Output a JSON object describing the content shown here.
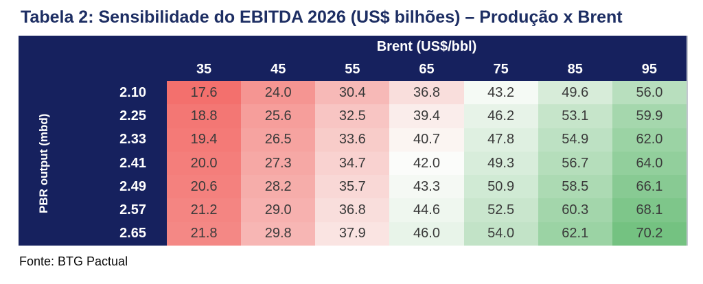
{
  "page": {
    "title": "Tabela 2: Sensibilidade do EBITDA 2026 (US$ bilhões) – Produção x Brent",
    "source_note": "Fonte: BTG Pactual"
  },
  "chart_data": {
    "type": "heatmap",
    "title": "Tabela 2: Sensibilidade do EBITDA 2026 (US$ bilhões) – Produção x Brent",
    "column_group_label": "Brent (US$/bbl)",
    "row_group_label": "PBR output (mbd)",
    "columns": [
      "35",
      "45",
      "55",
      "65",
      "75",
      "85",
      "95"
    ],
    "rows": [
      "2.10",
      "2.25",
      "2.33",
      "2.41",
      "2.49",
      "2.57",
      "2.65"
    ],
    "values": [
      [
        "17.6",
        "24.0",
        "30.4",
        "36.8",
        "43.2",
        "49.6",
        "56.0"
      ],
      [
        "18.8",
        "25.6",
        "32.5",
        "39.4",
        "46.2",
        "53.1",
        "59.9"
      ],
      [
        "19.4",
        "26.5",
        "33.6",
        "40.7",
        "47.8",
        "54.9",
        "62.0"
      ],
      [
        "20.0",
        "27.3",
        "34.7",
        "42.0",
        "49.3",
        "56.7",
        "64.0"
      ],
      [
        "20.6",
        "28.2",
        "35.7",
        "43.3",
        "50.9",
        "58.5",
        "66.1"
      ],
      [
        "21.2",
        "29.0",
        "36.8",
        "44.6",
        "52.5",
        "60.3",
        "68.1"
      ],
      [
        "21.8",
        "29.8",
        "37.9",
        "46.0",
        "54.0",
        "62.1",
        "70.2"
      ]
    ],
    "value_range": {
      "min": 17.6,
      "median": 42.0,
      "max": 70.2
    },
    "colors": {
      "header_bg": "#16215E",
      "header_text": "#FFFFFF",
      "title_text": "#1D2E63",
      "value_text": "#3A3A3A",
      "scale_min": "#F3706D",
      "scale_mid": "#FBFCFA",
      "scale_max": "#74C281"
    },
    "source": "Fonte: BTG Pactual"
  }
}
